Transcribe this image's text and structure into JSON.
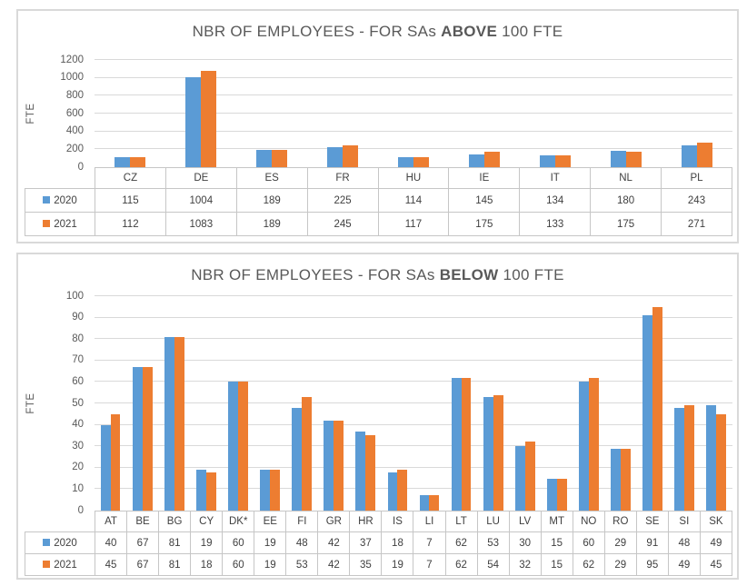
{
  "accent_colors": {
    "series_2020": "#5B9BD5",
    "series_2021": "#ED7D31"
  },
  "chart_data": [
    {
      "type": "bar",
      "title": "NBR OF EMPLOYEES - FOR SAs ABOVE 100 FTE",
      "title_prefix": "NBR OF EMPLOYEES - FOR SAs",
      "title_bold": "ABOVE",
      "title_suffix": "100 FTE",
      "xlabel": "",
      "ylabel": "FTE",
      "ylim": [
        0,
        1200
      ],
      "yticks": [
        0,
        200,
        400,
        600,
        800,
        1000,
        1200
      ],
      "grid": true,
      "legend_position": "data-table-left",
      "categories": [
        "CZ",
        "DE",
        "ES",
        "FR",
        "HU",
        "IE",
        "IT",
        "NL",
        "PL"
      ],
      "series": [
        {
          "name": "2020",
          "color": "#5B9BD5",
          "values": [
            115,
            1004,
            189,
            225,
            114,
            145,
            134,
            180,
            243
          ]
        },
        {
          "name": "2021",
          "color": "#ED7D31",
          "values": [
            112,
            1083,
            189,
            245,
            117,
            175,
            133,
            175,
            271
          ]
        }
      ]
    },
    {
      "type": "bar",
      "title": "NBR OF EMPLOYEES - FOR SAs BELOW 100 FTE",
      "title_prefix": "NBR OF EMPLOYEES - FOR SAs",
      "title_bold": "BELOW",
      "title_suffix": "100 FTE",
      "xlabel": "",
      "ylabel": "FTE",
      "ylim": [
        0,
        100
      ],
      "yticks": [
        0,
        10,
        20,
        30,
        40,
        50,
        60,
        70,
        80,
        90,
        100
      ],
      "grid": true,
      "legend_position": "data-table-left",
      "categories": [
        "AT",
        "BE",
        "BG",
        "CY",
        "DK*",
        "EE",
        "FI",
        "GR",
        "HR",
        "IS",
        "LI",
        "LT",
        "LU",
        "LV",
        "MT",
        "NO",
        "RO",
        "SE",
        "SI",
        "SK"
      ],
      "series": [
        {
          "name": "2020",
          "color": "#5B9BD5",
          "values": [
            40,
            67,
            81,
            19,
            60,
            19,
            48,
            42,
            37,
            18,
            7,
            62,
            53,
            30,
            15,
            60,
            29,
            91,
            48,
            49
          ]
        },
        {
          "name": "2021",
          "color": "#ED7D31",
          "values": [
            45,
            67,
            81,
            18,
            60,
            19,
            53,
            42,
            35,
            19,
            7,
            62,
            54,
            32,
            15,
            62,
            29,
            95,
            49,
            45
          ]
        }
      ]
    }
  ]
}
